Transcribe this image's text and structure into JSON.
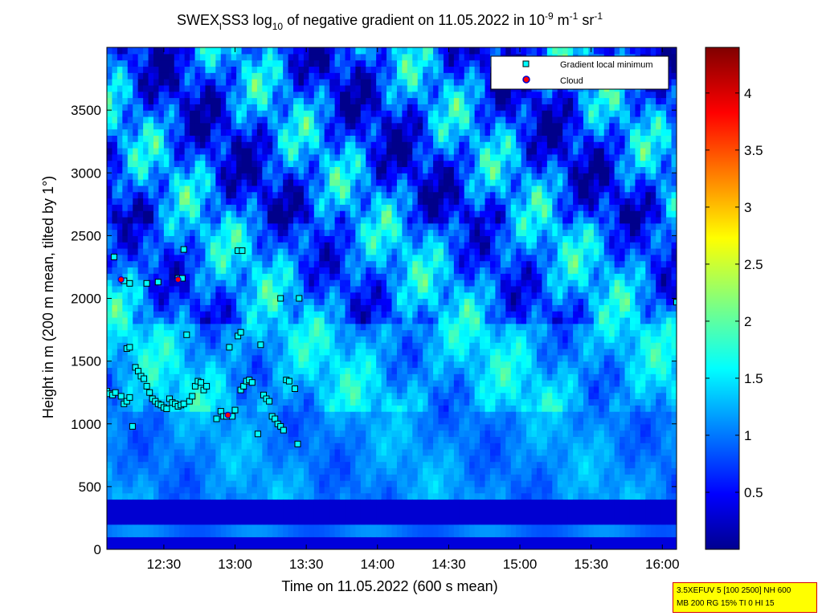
{
  "chart_data": [
    {
      "type": "heatmap",
      "title_parts": {
        "a": "SWEX",
        "a_sub": "l",
        "b": "SS3 log",
        "b_sub": "10",
        "c": " of negative gradient on 11.05.2022 in 10",
        "c_sup": "-9",
        "d": " m",
        "d_sup": "-1",
        "e": " sr",
        "e_sup": "-1"
      },
      "xlabel": "Time on 11.05.2022 (600 s mean)",
      "ylabel": "Height in m (200 m mean, tilted by 1°)",
      "x_ticks": [
        "12:30",
        "13:00",
        "13:30",
        "14:00",
        "14:30",
        "15:00",
        "15:30",
        "16:00"
      ],
      "x_tick_hours": [
        12.5,
        13.0,
        13.5,
        14.0,
        14.5,
        15.0,
        15.5,
        16.0
      ],
      "xlim": [
        12.1,
        16.1
      ],
      "y_ticks": [
        "0",
        "500",
        "1000",
        "1500",
        "2000",
        "2500",
        "3000",
        "3500"
      ],
      "y_tick_values": [
        0,
        500,
        1000,
        1500,
        2000,
        2500,
        3000,
        3500
      ],
      "ylim": [
        0,
        4000
      ],
      "colorbar": {
        "ticks": [
          "0.5",
          "1",
          "1.5",
          "2",
          "2.5",
          "3",
          "3.5",
          "4"
        ],
        "tick_values": [
          0.5,
          1.0,
          1.5,
          2.0,
          2.5,
          3.0,
          3.5,
          4.0
        ],
        "range": [
          0.0,
          4.4
        ],
        "colormap": "jet"
      },
      "legend": {
        "position": "top-right",
        "entries": [
          {
            "label": "Gradient local minimum",
            "marker": "square",
            "color": "#00ffff"
          },
          {
            "label": "Cloud",
            "marker": "circle",
            "color": "#ff0000"
          }
        ]
      },
      "series": [
        {
          "name": "Gradient local minimum",
          "points": [
            [
              12.1,
              1260
            ],
            [
              12.12,
              1240
            ],
            [
              12.14,
              1230
            ],
            [
              12.16,
              1250
            ],
            [
              12.2,
              1220
            ],
            [
              12.22,
              1160
            ],
            [
              12.24,
              1180
            ],
            [
              12.26,
              1210
            ],
            [
              12.28,
              980
            ],
            [
              12.15,
              2330
            ],
            [
              12.22,
              2140
            ],
            [
              12.26,
              2120
            ],
            [
              12.24,
              1600
            ],
            [
              12.26,
              1610
            ],
            [
              12.3,
              1450
            ],
            [
              12.32,
              1420
            ],
            [
              12.34,
              1380
            ],
            [
              12.36,
              1360
            ],
            [
              12.38,
              1300
            ],
            [
              12.4,
              1250
            ],
            [
              12.42,
              1200
            ],
            [
              12.44,
              1180
            ],
            [
              12.46,
              1160
            ],
            [
              12.48,
              1150
            ],
            [
              12.5,
              1130
            ],
            [
              12.52,
              1120
            ],
            [
              12.54,
              1200
            ],
            [
              12.56,
              1170
            ],
            [
              12.58,
              1160
            ],
            [
              12.6,
              1140
            ],
            [
              12.62,
              1150
            ],
            [
              12.64,
              1160
            ],
            [
              12.68,
              1180
            ],
            [
              12.7,
              1220
            ],
            [
              12.72,
              1300
            ],
            [
              12.74,
              1340
            ],
            [
              12.76,
              1330
            ],
            [
              12.78,
              1270
            ],
            [
              12.8,
              1300
            ],
            [
              12.38,
              2120
            ],
            [
              12.46,
              2130
            ],
            [
              12.6,
              2160
            ],
            [
              12.63,
              2160
            ],
            [
              12.64,
              2390
            ],
            [
              12.66,
              1710
            ],
            [
              12.87,
              1040
            ],
            [
              12.9,
              1100
            ],
            [
              12.92,
              1060
            ],
            [
              12.94,
              1060
            ],
            [
              12.96,
              1610
            ],
            [
              12.98,
              1060
            ],
            [
              13.0,
              1110
            ],
            [
              13.02,
              1700
            ],
            [
              13.04,
              1730
            ],
            [
              13.02,
              2380
            ],
            [
              13.05,
              2380
            ],
            [
              13.04,
              1270
            ],
            [
              13.06,
              1300
            ],
            [
              13.08,
              1340
            ],
            [
              13.1,
              1350
            ],
            [
              13.12,
              1330
            ],
            [
              13.16,
              920
            ],
            [
              13.18,
              1630
            ],
            [
              13.2,
              1230
            ],
            [
              13.22,
              1200
            ],
            [
              13.24,
              1180
            ],
            [
              13.26,
              1060
            ],
            [
              13.28,
              1040
            ],
            [
              13.3,
              1000
            ],
            [
              13.32,
              980
            ],
            [
              13.34,
              950
            ],
            [
              13.32,
              2000
            ],
            [
              13.36,
              1350
            ],
            [
              13.38,
              1340
            ],
            [
              13.42,
              1280
            ],
            [
              13.45,
              2000
            ],
            [
              13.44,
              840
            ],
            [
              16.1,
              1970
            ]
          ]
        },
        {
          "name": "Cloud",
          "points": [
            [
              12.2,
              2150
            ],
            [
              12.6,
              2150
            ],
            [
              12.95,
              1070
            ]
          ]
        }
      ]
    }
  ],
  "settings_box": {
    "line1": "3.5XEFUV 5 [100 2500] NH 600",
    "line2": "MB 200 RG 15% TI 0 HI 15"
  }
}
